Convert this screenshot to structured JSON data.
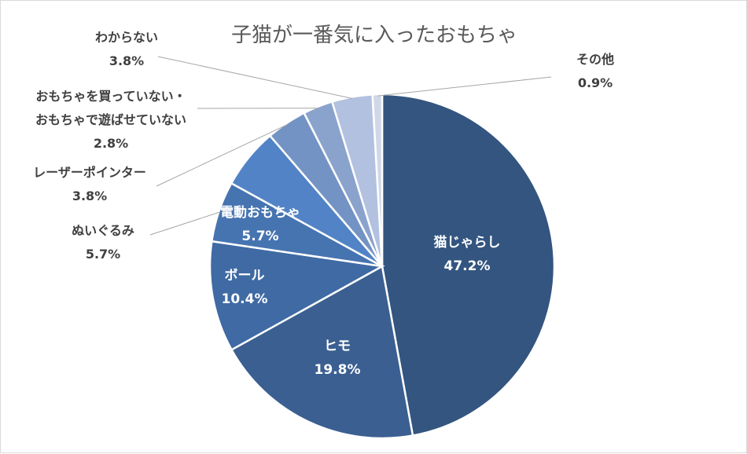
{
  "chart_data": {
    "type": "pie",
    "title": "子猫が一番気に入ったおもちゃ",
    "slices": [
      {
        "name": "猫じゃらし",
        "value": 47.2,
        "label_value": "47.2%",
        "color": "#335580"
      },
      {
        "name": "ヒモ",
        "value": 19.8,
        "label_value": "19.8%",
        "color": "#3b5f91"
      },
      {
        "name": "ボール",
        "value": 10.4,
        "label_value": "10.4%",
        "color": "#3f6aa4"
      },
      {
        "name": "ぬいぐるみ",
        "value": 5.7,
        "label_value": "5.7%",
        "color": "#4674b0"
      },
      {
        "name": "電動おもちゃ",
        "value": 5.7,
        "label_value": "5.7%",
        "color": "#5283c6"
      },
      {
        "name": "レーザーポインター",
        "value": 3.8,
        "label_value": "3.8%",
        "color": "#7393c4"
      },
      {
        "name_lines": [
          "おもちゃを買っていない・",
          "おもちゃで遊ばせていない"
        ],
        "value": 2.8,
        "label_value": "2.8%",
        "color": "#8aa3cd"
      },
      {
        "name": "わからない",
        "value": 3.8,
        "label_value": "3.8%",
        "color": "#b2c1df"
      },
      {
        "name": "その他",
        "value": 0.9,
        "label_value": "0.9%",
        "color": "#d0d8e8"
      }
    ]
  }
}
